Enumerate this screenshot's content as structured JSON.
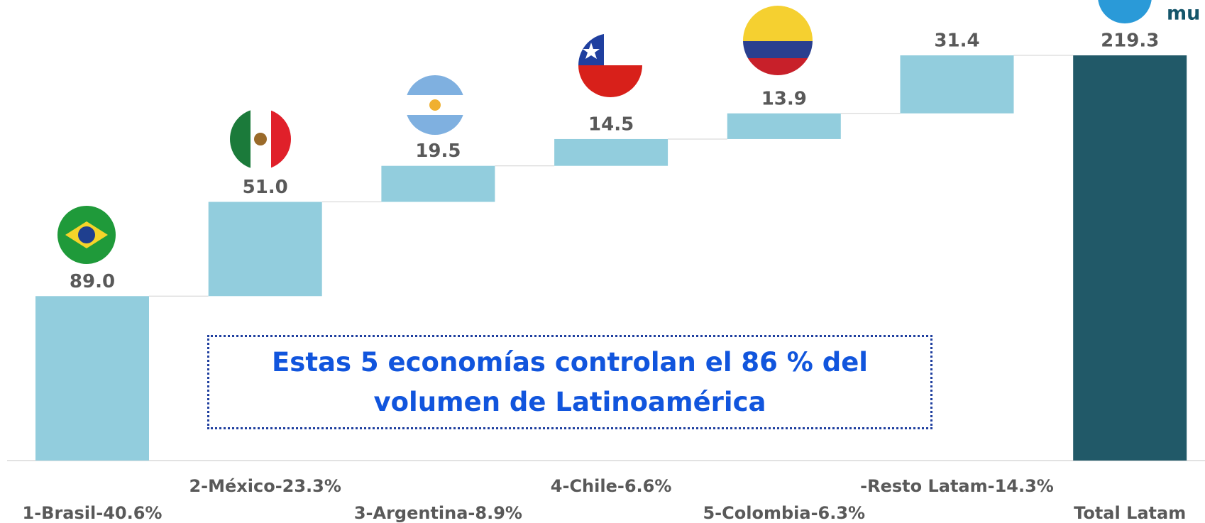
{
  "chart_data": {
    "type": "waterfall",
    "logo_text": "mu",
    "annotation": "Estas 5 economías controlan el 86 % del volumen de Latinoamérica",
    "categories": [
      "1-Brasil-40.6%",
      "2-México-23.3%",
      "3-Argentina-8.9%",
      "4-Chile-6.6%",
      "5-Colombia-6.3%",
      "-Resto Latam-14.3%",
      "Total Latam"
    ],
    "values": [
      89.0,
      51.0,
      19.5,
      14.5,
      13.9,
      31.4,
      219.3
    ],
    "value_labels": [
      "89.0",
      "51.0",
      "19.5",
      "14.5",
      "13.9",
      "31.4",
      "219.3"
    ],
    "measure": [
      "relative",
      "relative",
      "relative",
      "relative",
      "relative",
      "relative",
      "total"
    ],
    "colors": {
      "relative": "#92cddd",
      "total": "#215968"
    }
  }
}
